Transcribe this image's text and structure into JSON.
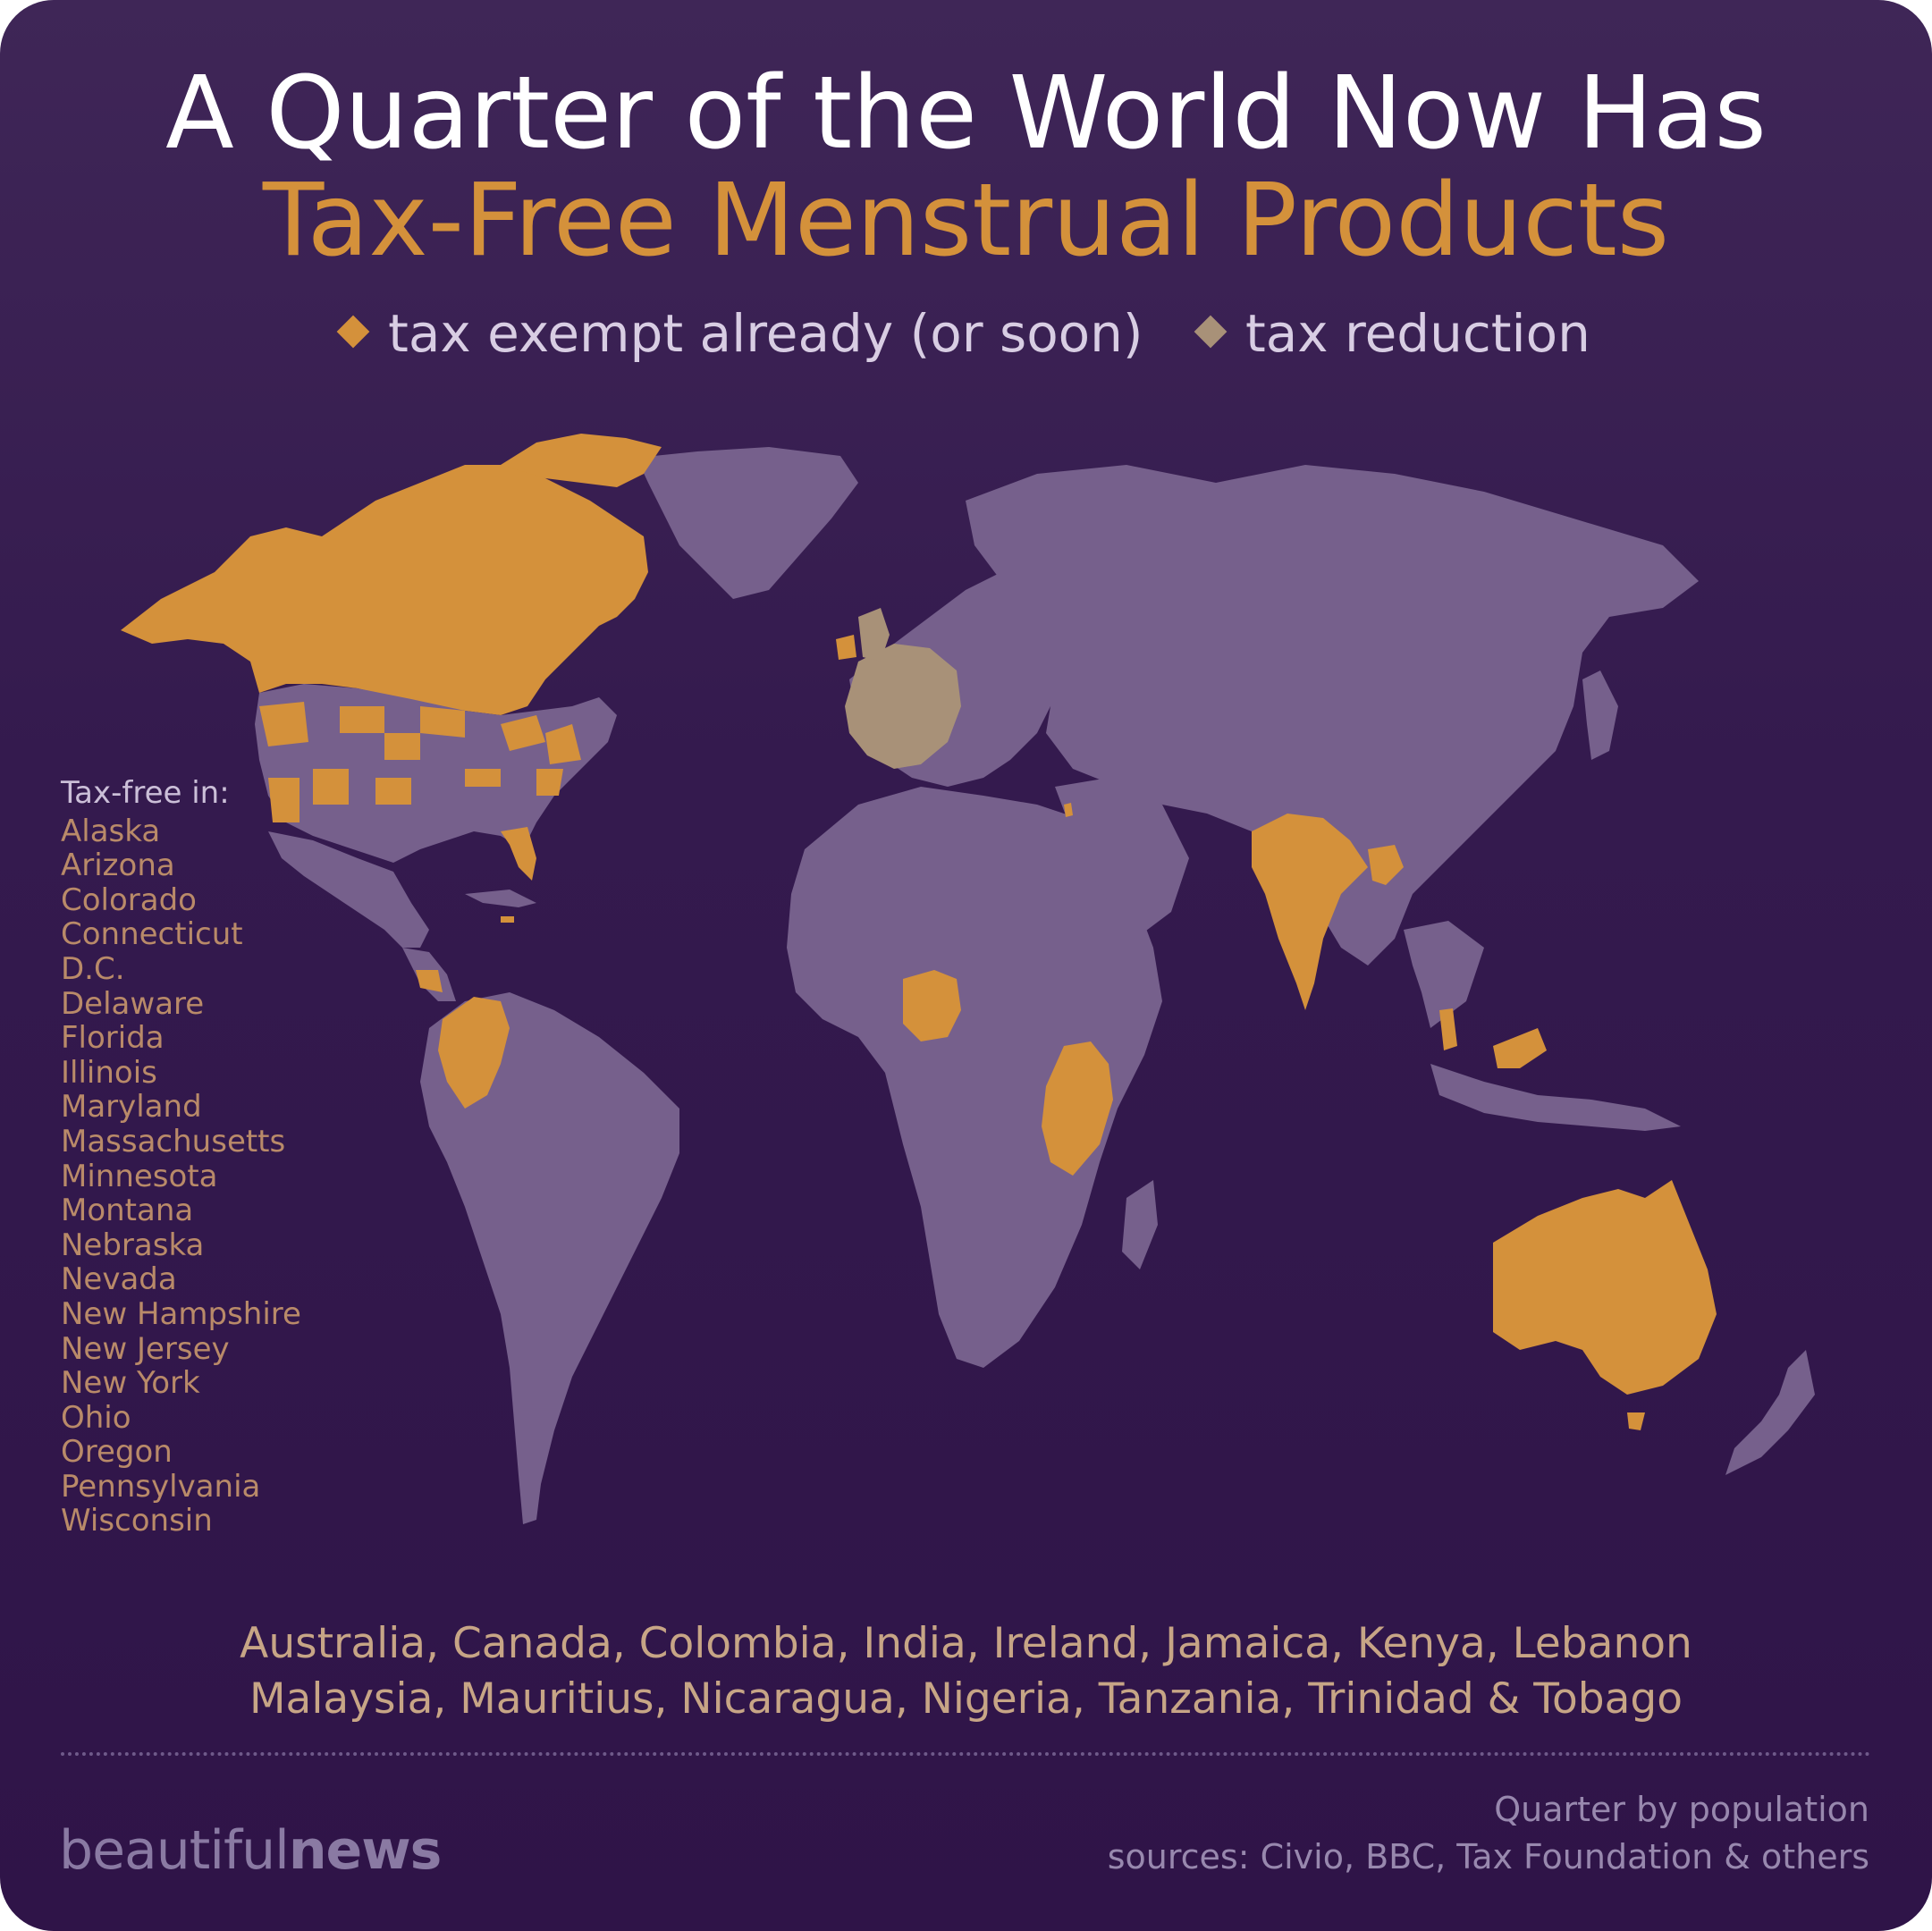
{
  "title_line1": "A Quarter of the World Now Has",
  "title_line2": "Tax-Free Menstrual Products",
  "legend": [
    {
      "label": "tax exempt already (or soon)",
      "color": "#d4913b"
    },
    {
      "label": "tax reduction",
      "color": "#a89178"
    }
  ],
  "colors": {
    "background": "#341a4e",
    "land": "#76608c",
    "exempt": "#d4913b",
    "reduction": "#a89178",
    "accent_text": "#d4913b"
  },
  "states_heading": "Tax-free in:",
  "states": [
    "Alaska",
    "Arizona",
    "Colorado",
    "Connecticut",
    "D.C.",
    "Delaware",
    "Florida",
    "Illinois",
    "Maryland",
    "Massachusetts",
    "Minnesota",
    "Montana",
    "Nebraska",
    "Nevada",
    "New Hampshire",
    "New Jersey",
    "New York",
    "Ohio",
    "Oregon",
    "Pennsylvania",
    "Wisconsin"
  ],
  "countries_line1": "Australia, Canada, Colombia, India, Ireland, Jamaica, Kenya, Lebanon",
  "countries_line2": "Malaysia, Mauritius, Nicaragua, Nigeria, Tanzania, Trinidad & Tobago",
  "brand_light": "beautiful",
  "brand_bold": "news",
  "note": "Quarter by population",
  "sources": "sources: Civio, BBC, Tax Foundation & others"
}
